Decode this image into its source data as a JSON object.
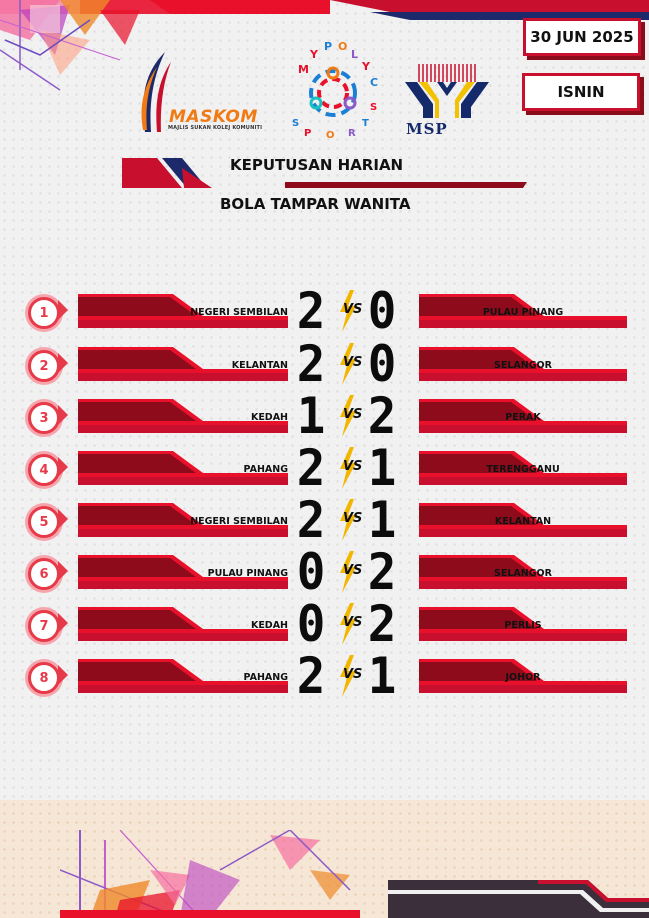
{
  "header": {
    "date": "30 JUN 2025",
    "day": "ISNIN",
    "title": "KEPUTUSAN HARIAN",
    "event": "BOLA TAMPAR WANITA"
  },
  "logos": {
    "maskom": "MASKOM",
    "maskom_sub": "MAJLIS SUKAN KOLEJ KOMUNITI",
    "polyc": "MY POLY C SPORTS",
    "msp": "MSP"
  },
  "vs_label": "VS",
  "matches": [
    {
      "no": "1",
      "home": "NEGERI SEMBILAN",
      "home_score": "2",
      "away_score": "0",
      "away": "PULAU PINANG"
    },
    {
      "no": "2",
      "home": "KELANTAN",
      "home_score": "2",
      "away_score": "0",
      "away": "SELANGOR"
    },
    {
      "no": "3",
      "home": "KEDAH",
      "home_score": "1",
      "away_score": "2",
      "away": "PERAK"
    },
    {
      "no": "4",
      "home": "PAHANG",
      "home_score": "2",
      "away_score": "1",
      "away": "TERENGGANU"
    },
    {
      "no": "5",
      "home": "NEGERI SEMBILAN",
      "home_score": "2",
      "away_score": "1",
      "away": "KELANTAN"
    },
    {
      "no": "6",
      "home": "PULAU PINANG",
      "home_score": "0",
      "away_score": "2",
      "away": "SELANGOR"
    },
    {
      "no": "7",
      "home": "KEDAH",
      "home_score": "0",
      "away_score": "2",
      "away": "PERLIS"
    },
    {
      "no": "8",
      "home": "PAHANG",
      "home_score": "2",
      "away_score": "1",
      "away": "JOHOR"
    }
  ],
  "colors": {
    "accent": "#e8102a",
    "dark_red": "#8e0b1b",
    "navy": "#1c2a6b"
  }
}
